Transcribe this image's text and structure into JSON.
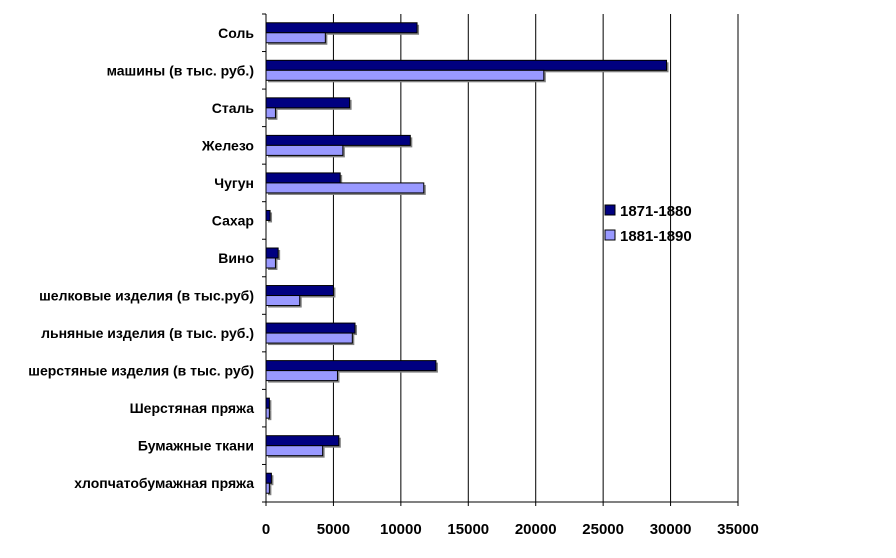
{
  "chart_data": {
    "type": "bar",
    "orientation": "horizontal",
    "categories": [
      "Соль",
      "машины (в тыс. руб.)",
      "Сталь",
      "Железо",
      "Чугун",
      "Сахар",
      "Вино",
      "шелковые изделия (в тыс.руб)",
      "льняные изделия (в тыс. руб.)",
      "шерстяные изделия (в тыс. руб)",
      "Шерстяная пряжа",
      "Бумажные ткани",
      "хлопчатобумажная пряжа"
    ],
    "series": [
      {
        "name": "1871-1880",
        "color": "#000080",
        "values": [
          11200,
          29700,
          6200,
          10700,
          5500,
          300,
          900,
          5000,
          6600,
          12600,
          250,
          5400,
          400
        ]
      },
      {
        "name": "1881-1890",
        "color": "#9999ff",
        "values": [
          4400,
          20600,
          700,
          5700,
          11700,
          0,
          700,
          2500,
          6400,
          5300,
          250,
          4200,
          250
        ]
      }
    ],
    "xlim": [
      0,
      35000
    ],
    "xticks": [
      0,
      5000,
      10000,
      15000,
      20000,
      25000,
      30000,
      35000
    ],
    "xtick_labels": [
      "0",
      "5000",
      "10000",
      "15000",
      "20000",
      "25000",
      "30000",
      "35000"
    ],
    "grid": "vertical",
    "legend_position": "right"
  }
}
